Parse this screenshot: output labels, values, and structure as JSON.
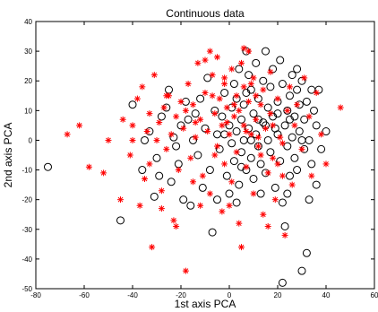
{
  "chart_data": {
    "type": "scatter",
    "title": "Continuous data",
    "xlabel": "1st axis PCA",
    "ylabel": "2nd axis PCA",
    "xlim": [
      -80,
      60
    ],
    "ylim": [
      -50,
      40
    ],
    "xticks": [
      -80,
      -60,
      -40,
      -20,
      0,
      20,
      40,
      60
    ],
    "yticks": [
      -50,
      -40,
      -30,
      -20,
      -10,
      0,
      10,
      20,
      30,
      40
    ],
    "grid": false,
    "legend": "none",
    "series": [
      {
        "marker": "circle",
        "color": "#000000",
        "points": [
          [
            -75,
            -9
          ],
          [
            -45,
            -27
          ],
          [
            -40,
            12
          ],
          [
            -36,
            -10
          ],
          [
            -33,
            3
          ],
          [
            -31,
            -19
          ],
          [
            -30,
            -6
          ],
          [
            -28,
            8
          ],
          [
            -26,
            11
          ],
          [
            -25,
            17
          ],
          [
            -24,
            -14
          ],
          [
            -22,
            -2
          ],
          [
            -21,
            -8
          ],
          [
            -20,
            5
          ],
          [
            -18,
            13
          ],
          [
            -16,
            -22
          ],
          [
            -15,
            0
          ],
          [
            -14,
            9
          ],
          [
            -13,
            -5
          ],
          [
            -12,
            14
          ],
          [
            -11,
            -16
          ],
          [
            -10,
            4
          ],
          [
            -9,
            21
          ],
          [
            -8,
            -10
          ],
          [
            -7,
            -31
          ],
          [
            -6,
            10
          ],
          [
            -5,
            2
          ],
          [
            -4,
            -3
          ],
          [
            -3,
            8
          ],
          [
            -2,
            16
          ],
          [
            -1,
            -12
          ],
          [
            0,
            5
          ],
          [
            1,
            11
          ],
          [
            1,
            -1
          ],
          [
            2,
            19
          ],
          [
            2,
            -7
          ],
          [
            3,
            14
          ],
          [
            3,
            3
          ],
          [
            4,
            24
          ],
          [
            4,
            -15
          ],
          [
            5,
            7
          ],
          [
            5,
            -4
          ],
          [
            6,
            12
          ],
          [
            6,
            0
          ],
          [
            7,
            30
          ],
          [
            7,
            -10
          ],
          [
            8,
            22
          ],
          [
            8,
            4
          ],
          [
            9,
            17
          ],
          [
            9,
            -6
          ],
          [
            10,
            9
          ],
          [
            10,
            -13
          ],
          [
            11,
            2
          ],
          [
            11,
            26
          ],
          [
            12,
            14
          ],
          [
            12,
            -2
          ],
          [
            13,
            -8
          ],
          [
            14,
            20
          ],
          [
            14,
            6
          ],
          [
            15,
            30
          ],
          [
            15,
            -11
          ],
          [
            16,
            11
          ],
          [
            16,
            0
          ],
          [
            17,
            18
          ],
          [
            17,
            -4
          ],
          [
            18,
            24
          ],
          [
            18,
            8
          ],
          [
            19,
            -16
          ],
          [
            20,
            13
          ],
          [
            20,
            2
          ],
          [
            21,
            27
          ],
          [
            21,
            -7
          ],
          [
            22,
            -48
          ],
          [
            22,
            -21
          ],
          [
            22,
            19
          ],
          [
            23,
            5
          ],
          [
            23,
            -29
          ],
          [
            24,
            10
          ],
          [
            24,
            -2
          ],
          [
            25,
            15
          ],
          [
            25,
            -12
          ],
          [
            26,
            22
          ],
          [
            26,
            1
          ],
          [
            27,
            8
          ],
          [
            27,
            -6
          ],
          [
            28,
            17
          ],
          [
            28,
            -10
          ],
          [
            29,
            3
          ],
          [
            29,
            12
          ],
          [
            30,
            -44
          ],
          [
            30,
            20
          ],
          [
            31,
            7
          ],
          [
            31,
            -3
          ],
          [
            32,
            -38
          ],
          [
            32,
            13
          ],
          [
            33,
            0
          ],
          [
            34,
            17
          ],
          [
            34,
            -8
          ],
          [
            35,
            10
          ],
          [
            36,
            5
          ],
          [
            37,
            17
          ],
          [
            38,
            -3
          ],
          [
            40,
            3
          ],
          [
            -35,
            0
          ],
          [
            -29,
            -12
          ],
          [
            -19,
            -20
          ],
          [
            -17,
            7
          ],
          [
            -23,
            1
          ],
          [
            0,
            -18
          ],
          [
            -5,
            -20
          ],
          [
            3,
            -21
          ],
          [
            9,
            0
          ],
          [
            13,
            -18
          ],
          [
            19,
            4
          ],
          [
            24,
            -18
          ],
          [
            28,
            24
          ],
          [
            33,
            -20
          ],
          [
            36,
            -15
          ],
          [
            12,
            7
          ],
          [
            7,
            16
          ],
          [
            -2,
            2
          ],
          [
            5,
            -9
          ],
          [
            15,
            5
          ],
          [
            20,
            9
          ],
          [
            25,
            7
          ],
          [
            30,
            0
          ]
        ]
      },
      {
        "marker": "star",
        "color": "#ff0000",
        "points": [
          [
            -67,
            2
          ],
          [
            -62,
            5
          ],
          [
            -58,
            -9
          ],
          [
            -52,
            -11
          ],
          [
            -50,
            0
          ],
          [
            -45,
            -20
          ],
          [
            -44,
            7
          ],
          [
            -41,
            -5
          ],
          [
            -40,
            5
          ],
          [
            -38,
            14
          ],
          [
            -37,
            -22
          ],
          [
            -36,
            18
          ],
          [
            -35,
            -13
          ],
          [
            -34,
            3
          ],
          [
            -33,
            9
          ],
          [
            -32,
            -36
          ],
          [
            -31,
            22
          ],
          [
            -30,
            0
          ],
          [
            -29,
            6
          ],
          [
            -28,
            -17
          ],
          [
            -27,
            11
          ],
          [
            -26,
            -3
          ],
          [
            -25,
            15
          ],
          [
            -24,
            2
          ],
          [
            -23,
            -27
          ],
          [
            -22,
            8
          ],
          [
            -21,
            -10
          ],
          [
            -20,
            13
          ],
          [
            -19,
            4
          ],
          [
            -18,
            -44
          ],
          [
            -17,
            19
          ],
          [
            -16,
            -6
          ],
          [
            -15,
            12
          ],
          [
            -14,
            1
          ],
          [
            -13,
            26
          ],
          [
            -12,
            7
          ],
          [
            -11,
            -12
          ],
          [
            -10,
            16
          ],
          [
            -9,
            3
          ],
          [
            -8,
            -18
          ],
          [
            -7,
            22
          ],
          [
            -6,
            9
          ],
          [
            -5,
            -2
          ],
          [
            -5,
            28
          ],
          [
            -4,
            14
          ],
          [
            -3,
            5
          ],
          [
            -2,
            -8
          ],
          [
            -2,
            19
          ],
          [
            -1,
            11
          ],
          [
            0,
            2
          ],
          [
            1,
            24
          ],
          [
            1,
            -14
          ],
          [
            2,
            8
          ],
          [
            3,
            15
          ],
          [
            3,
            -4
          ],
          [
            4,
            10
          ],
          [
            5,
            26
          ],
          [
            5,
            -36
          ],
          [
            6,
            5
          ],
          [
            6,
            18
          ],
          [
            7,
            -9
          ],
          [
            8,
            13
          ],
          [
            9,
            2
          ],
          [
            10,
            21
          ],
          [
            10,
            -18
          ],
          [
            11,
            7
          ],
          [
            12,
            -2
          ],
          [
            13,
            12
          ],
          [
            14,
            17
          ],
          [
            14,
            -25
          ],
          [
            15,
            4
          ],
          [
            16,
            -11
          ],
          [
            17,
            9
          ],
          [
            17,
            23
          ],
          [
            18,
            -6
          ],
          [
            19,
            -20
          ],
          [
            20,
            14
          ],
          [
            21,
            1
          ],
          [
            22,
            -12
          ],
          [
            23,
            -32
          ],
          [
            24,
            10
          ],
          [
            25,
            18
          ],
          [
            26,
            -15
          ],
          [
            27,
            5
          ],
          [
            28,
            12
          ],
          [
            30,
            -3
          ],
          [
            31,
            21
          ],
          [
            33,
            8
          ],
          [
            34,
            -12
          ],
          [
            36,
            16
          ],
          [
            38,
            2
          ],
          [
            40,
            -8
          ],
          [
            46,
            11
          ],
          [
            -28,
            -23
          ],
          [
            -22,
            -29
          ],
          [
            -15,
            -14
          ],
          [
            -8,
            30
          ],
          [
            0,
            -22
          ],
          [
            8,
            30
          ],
          [
            12,
            1
          ],
          [
            -3,
            -24
          ],
          [
            4,
            -28
          ],
          [
            -33,
            -8
          ],
          [
            -14,
            6
          ],
          [
            18,
            5
          ],
          [
            22,
            -1
          ],
          [
            -26,
            15
          ],
          [
            -10,
            27
          ],
          [
            2,
            12
          ],
          [
            16,
            -29
          ],
          [
            6,
            31
          ],
          [
            -1,
            6
          ],
          [
            9,
            19
          ],
          [
            -6,
            -5
          ],
          [
            11,
            15
          ],
          [
            -18,
            10
          ],
          [
            20,
            -8
          ],
          [
            -40,
            0
          ],
          [
            -12,
            -22
          ],
          [
            -2,
            21
          ],
          [
            7,
            3
          ],
          [
            13,
            -5
          ],
          [
            -7,
            15
          ]
        ]
      }
    ]
  }
}
